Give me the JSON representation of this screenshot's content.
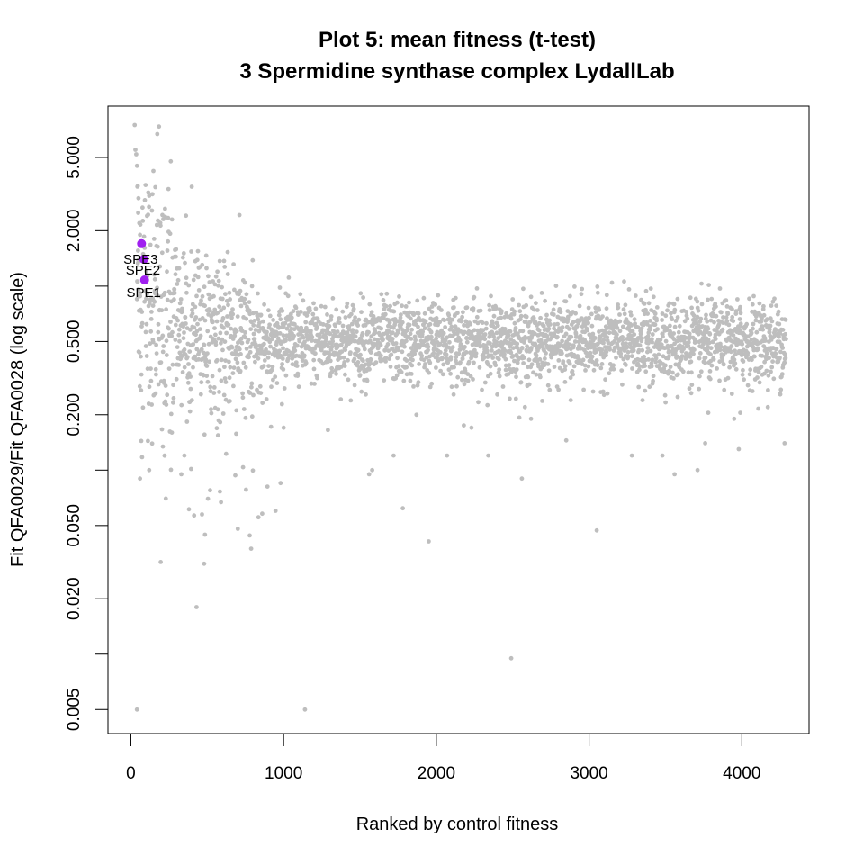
{
  "chart_data": {
    "type": "scatter",
    "title": "Plot 5: mean fitness (t-test)",
    "subtitle": "3 Spermidine synthase complex  LydallLab",
    "xlabel": "Ranked by control fitness",
    "ylabel": "Fit QFA0029/Fit QFA0028 (log scale)",
    "xlim": [
      -150,
      4440
    ],
    "ylim": [
      0.0037,
      9.5
    ],
    "y_scale": "log",
    "grid": false,
    "legend": "none",
    "x_ticks": [
      {
        "value": 0,
        "label": "0"
      },
      {
        "value": 1000,
        "label": "1000"
      },
      {
        "value": 2000,
        "label": "2000"
      },
      {
        "value": 3000,
        "label": "3000"
      },
      {
        "value": 4000,
        "label": "4000"
      }
    ],
    "y_ticks": [
      {
        "value": 0.005,
        "label": "0.005"
      },
      {
        "value": 0.01,
        "label": ""
      },
      {
        "value": 0.02,
        "label": "0.020"
      },
      {
        "value": 0.05,
        "label": "0.050"
      },
      {
        "value": 0.1,
        "label": ""
      },
      {
        "value": 0.2,
        "label": "0.200"
      },
      {
        "value": 0.5,
        "label": "0.500"
      },
      {
        "value": 1,
        "label": ""
      },
      {
        "value": 2,
        "label": "2.000"
      },
      {
        "value": 5,
        "label": "5.000"
      }
    ],
    "background_color": "#bebebe",
    "highlight_color": "#a020f0",
    "highlight_series": [
      {
        "label": "SPE3",
        "x": 70,
        "y": 1.7
      },
      {
        "label": "SPE2",
        "x": 85,
        "y": 1.4
      },
      {
        "label": "SPE1",
        "x": 90,
        "y": 1.08
      }
    ],
    "background_series_outliers": [
      {
        "x": 25,
        "y": 7.5
      },
      {
        "x": 30,
        "y": 5.5
      },
      {
        "x": 35,
        "y": 5.2
      },
      {
        "x": 40,
        "y": 4.5
      },
      {
        "x": 45,
        "y": 3.5
      },
      {
        "x": 50,
        "y": 3.0
      },
      {
        "x": 48,
        "y": 2.5
      },
      {
        "x": 55,
        "y": 2.2
      },
      {
        "x": 60,
        "y": 1.9
      },
      {
        "x": 40,
        "y": 0.005
      },
      {
        "x": 1140,
        "y": 0.005
      },
      {
        "x": 2490,
        "y": 0.0095
      },
      {
        "x": 430,
        "y": 0.018
      },
      {
        "x": 480,
        "y": 0.031
      },
      {
        "x": 700,
        "y": 0.048
      },
      {
        "x": 860,
        "y": 0.058
      },
      {
        "x": 1950,
        "y": 0.041
      },
      {
        "x": 3050,
        "y": 0.047
      },
      {
        "x": 1780,
        "y": 0.062
      },
      {
        "x": 1560,
        "y": 0.095
      },
      {
        "x": 1580,
        "y": 0.1
      },
      {
        "x": 1720,
        "y": 0.12
      },
      {
        "x": 2070,
        "y": 0.12
      },
      {
        "x": 2340,
        "y": 0.12
      },
      {
        "x": 2560,
        "y": 0.09
      },
      {
        "x": 3280,
        "y": 0.12
      },
      {
        "x": 3480,
        "y": 0.12
      },
      {
        "x": 3560,
        "y": 0.095
      },
      {
        "x": 3710,
        "y": 0.1
      },
      {
        "x": 3760,
        "y": 0.14
      },
      {
        "x": 3980,
        "y": 0.13
      },
      {
        "x": 4280,
        "y": 0.14
      },
      {
        "x": 60,
        "y": 0.09
      },
      {
        "x": 120,
        "y": 0.1
      },
      {
        "x": 330,
        "y": 0.095
      },
      {
        "x": 350,
        "y": 0.12
      },
      {
        "x": 590,
        "y": 0.067
      },
      {
        "x": 980,
        "y": 0.085
      },
      {
        "x": 2850,
        "y": 0.145
      },
      {
        "x": 3780,
        "y": 0.205
      },
      {
        "x": 3990,
        "y": 0.205
      },
      {
        "x": 4170,
        "y": 0.22
      },
      {
        "x": 4250,
        "y": 0.26
      },
      {
        "x": 3580,
        "y": 0.25
      },
      {
        "x": 3950,
        "y": 0.19
      },
      {
        "x": 3350,
        "y": 0.24
      },
      {
        "x": 2880,
        "y": 0.24
      },
      {
        "x": 2620,
        "y": 0.19
      },
      {
        "x": 2580,
        "y": 0.22
      },
      {
        "x": 2180,
        "y": 0.175
      },
      {
        "x": 2230,
        "y": 0.17
      },
      {
        "x": 1870,
        "y": 0.2
      },
      {
        "x": 1290,
        "y": 0.165
      },
      {
        "x": 1000,
        "y": 0.17
      }
    ]
  }
}
